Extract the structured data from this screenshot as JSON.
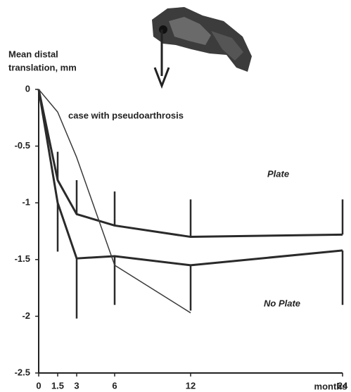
{
  "chart_data": {
    "type": "line",
    "ylabel": [
      "Mean distal",
      "translation, mm"
    ],
    "xlabel": "months",
    "x": [
      0,
      1.5,
      3,
      6,
      12,
      24
    ],
    "xlim": [
      0,
      24
    ],
    "xticks": [
      0,
      1.5,
      3,
      6,
      12,
      24
    ],
    "ylim": [
      -2.5,
      0
    ],
    "yticks": [
      0,
      -0.5,
      -1,
      -1.5,
      -2,
      -2.5
    ],
    "series": [
      {
        "name": "Plate",
        "color": "#2a2a2a",
        "line_width": 3,
        "values": [
          0,
          -0.8,
          -1.1,
          -1.2,
          -1.3,
          -1.28
        ],
        "error_up": [
          null,
          0.25,
          0.3,
          0.3,
          0.33,
          0.31
        ]
      },
      {
        "name": "No Plate",
        "color": "#2a2a2a",
        "line_width": 3,
        "values": [
          0,
          -1.0,
          -1.49,
          -1.47,
          -1.55,
          -1.42
        ],
        "error_down": [
          null,
          0.43,
          0.53,
          0.43,
          0.4,
          0.48
        ]
      },
      {
        "name": "case with pseudoarthrosis",
        "color": "#3a3a3a",
        "line_width": 1.5,
        "values": [
          0,
          -0.2,
          -0.6,
          -1.55,
          -1.97,
          null
        ]
      }
    ]
  }
}
